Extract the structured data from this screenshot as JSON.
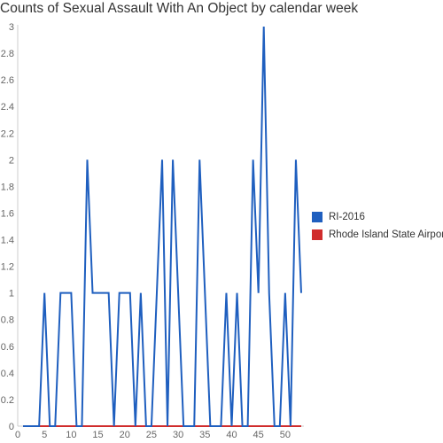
{
  "chart_data": {
    "type": "line",
    "title": "Counts of Sexual Assault With An Object by calendar week",
    "xlabel": "",
    "ylabel": "",
    "x": [
      1,
      2,
      3,
      4,
      5,
      6,
      7,
      8,
      9,
      10,
      11,
      12,
      13,
      14,
      15,
      16,
      17,
      18,
      19,
      20,
      21,
      22,
      23,
      24,
      25,
      26,
      27,
      28,
      29,
      30,
      31,
      32,
      33,
      34,
      35,
      36,
      37,
      38,
      39,
      40,
      41,
      42,
      43,
      44,
      45,
      46,
      47,
      48,
      49,
      50,
      51,
      52,
      53
    ],
    "xlim": [
      0,
      53.5
    ],
    "xticks": [
      0,
      5,
      10,
      15,
      20,
      25,
      30,
      35,
      40,
      45,
      50
    ],
    "ylim": [
      0,
      3
    ],
    "yticks": [
      0,
      0.2,
      0.4,
      0.6,
      0.8,
      1,
      1.2,
      1.4,
      1.6,
      1.8,
      2,
      2.2,
      2.4,
      2.6,
      2.8,
      3
    ],
    "grid": false,
    "legend_position": "right",
    "series": [
      {
        "name": "RI-2016",
        "color": "#1f5fbf",
        "values": [
          0,
          0,
          0,
          0,
          1,
          0,
          0,
          1,
          1,
          1,
          0,
          0,
          2,
          1,
          1,
          1,
          1,
          0,
          1,
          1,
          1,
          0,
          1,
          0,
          0,
          1,
          2,
          0,
          2,
          1,
          0,
          0,
          0,
          2,
          1,
          0,
          0,
          0,
          1,
          0,
          1,
          0,
          0,
          2,
          1,
          3,
          1,
          0,
          0,
          1,
          0,
          2,
          1
        ]
      },
      {
        "name": "Rhode Island State Airport",
        "color": "#d02c2c",
        "values": [
          0,
          0,
          0,
          0,
          0,
          0,
          0,
          0,
          0,
          0,
          0,
          0,
          0,
          0,
          0,
          0,
          0,
          0,
          0,
          0,
          0,
          0,
          0,
          0,
          0,
          0,
          0,
          0,
          0,
          0,
          0,
          0,
          0,
          0,
          0,
          0,
          0,
          0,
          0,
          0,
          0,
          0,
          0,
          0,
          0,
          0,
          0,
          0,
          0,
          0,
          0,
          0,
          0
        ]
      }
    ]
  }
}
